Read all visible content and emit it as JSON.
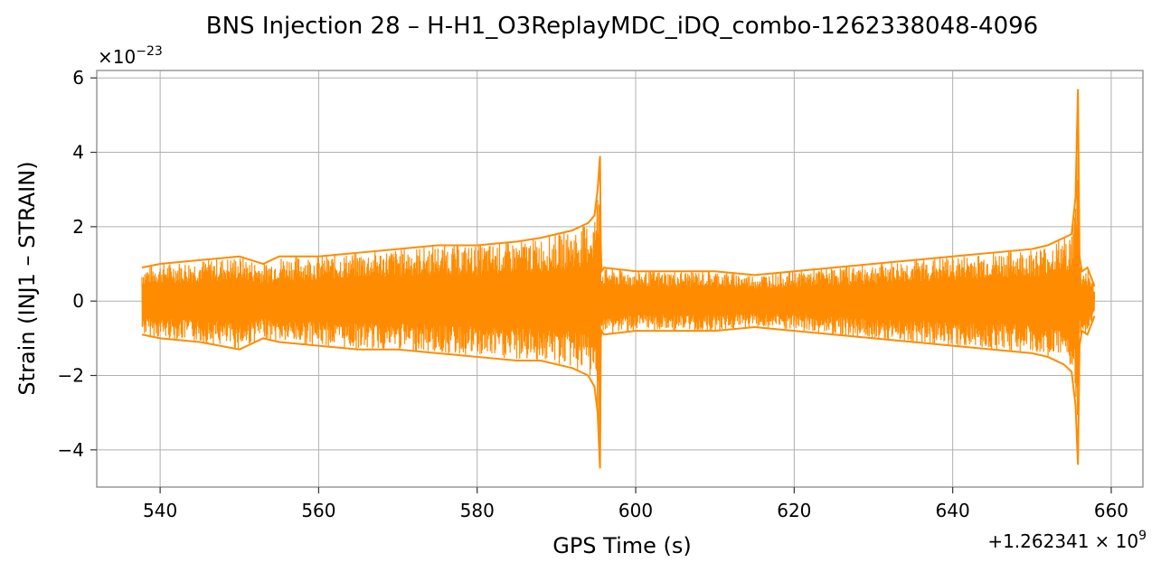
{
  "chart_data": {
    "type": "line",
    "title": "BNS Injection 28 – H-H1_O3ReplayMDC_iDQ_combo-1262338048-4096",
    "xlabel": "GPS Time (s)",
    "ylabel": "Strain (INJ1 – STRAIN)",
    "x_offset_label_main": "+1.262341",
    "x_offset_label_base": "× 10",
    "x_offset_label_exp": "9",
    "y_scale_label_main": "×10",
    "y_scale_label_exp": "−23",
    "xlim": [
      532,
      664
    ],
    "ylim": [
      -5.0,
      6.2
    ],
    "x_ticks": [
      540,
      560,
      580,
      600,
      620,
      640,
      660
    ],
    "x_tick_labels": [
      "540",
      "560",
      "580",
      "600",
      "620",
      "640",
      "660"
    ],
    "y_ticks": [
      -4,
      -2,
      0,
      2,
      4,
      6
    ],
    "y_tick_labels": [
      "−4",
      "−2",
      "0",
      "2",
      "4",
      "6"
    ],
    "grid": true,
    "series": [
      {
        "color": "#ff8c00",
        "x": [
          537.7,
          540,
          545,
          550,
          553,
          555,
          560,
          565,
          570,
          575,
          580,
          585,
          588,
          590,
          592,
          593,
          594,
          594.8,
          595.2,
          595.5,
          595.6,
          595.7,
          596,
          600,
          605,
          610,
          615,
          620,
          625,
          630,
          635,
          640,
          645,
          650,
          652,
          653,
          654,
          655,
          655.5,
          655.8,
          656,
          656.3,
          657,
          657.9
        ],
        "env_upper": [
          0.9,
          1.0,
          1.1,
          1.2,
          1.0,
          1.2,
          1.2,
          1.3,
          1.4,
          1.5,
          1.5,
          1.6,
          1.7,
          1.8,
          1.9,
          2.0,
          2.1,
          2.3,
          3.0,
          3.9,
          1.5,
          0.8,
          0.9,
          0.8,
          0.8,
          0.8,
          0.7,
          0.8,
          0.9,
          1.0,
          1.1,
          1.2,
          1.3,
          1.4,
          1.5,
          1.6,
          1.7,
          1.8,
          2.8,
          5.7,
          1.2,
          0.8,
          0.9,
          0.4
        ],
        "env_lower": [
          -0.9,
          -1.0,
          -1.1,
          -1.3,
          -1.0,
          -1.1,
          -1.2,
          -1.3,
          -1.3,
          -1.4,
          -1.5,
          -1.6,
          -1.6,
          -1.7,
          -1.8,
          -1.9,
          -2.0,
          -2.3,
          -3.0,
          -4.5,
          -1.0,
          -0.8,
          -0.9,
          -0.8,
          -0.8,
          -0.8,
          -0.7,
          -0.8,
          -0.9,
          -1.0,
          -1.1,
          -1.2,
          -1.3,
          -1.4,
          -1.5,
          -1.6,
          -1.7,
          -1.9,
          -2.8,
          -4.4,
          -1.2,
          -0.8,
          -0.9,
          -0.4
        ]
      }
    ]
  }
}
